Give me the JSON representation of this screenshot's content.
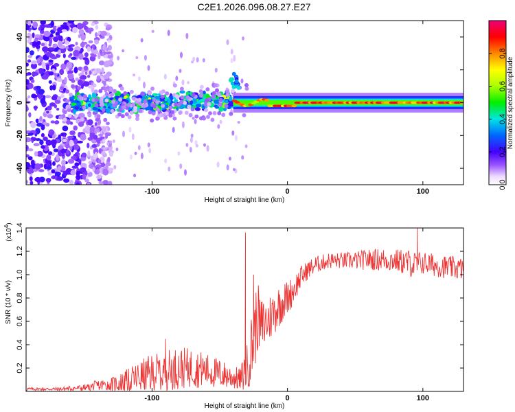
{
  "title": "C2E1.2026.096.08.27.E27",
  "chart_data": [
    {
      "type": "heatmap",
      "xlabel": "Height of straight line (km)",
      "ylabel": "Frequency (Hz)",
      "xlim": [
        -193,
        130
      ],
      "ylim": [
        -50,
        50
      ],
      "xticks": [
        -100,
        0,
        100
      ],
      "yticks": [
        -40,
        -20,
        0,
        20,
        40
      ],
      "colorbar": {
        "label": "Normalized spectral amplitude",
        "range": [
          0.0,
          1.0
        ],
        "ticks": [
          "0.0",
          "0.2",
          "0.4",
          "0.6",
          "0.8"
        ],
        "tick_values": [
          0.0,
          0.2,
          0.4,
          0.6,
          0.8
        ]
      },
      "features": [
        {
          "region": "noise",
          "x_range": [
            -193,
            -130
          ],
          "freq_range": [
            -50,
            50
          ],
          "amplitude": [
            0.1,
            0.25
          ]
        },
        {
          "region": "line-onset",
          "x_range": [
            -160,
            -40
          ],
          "center_freq": 0,
          "width_hz": 6,
          "amplitude": [
            0.2,
            0.5
          ]
        },
        {
          "region": "bump",
          "x_range": [
            -42,
            -36
          ],
          "center_freq": 15,
          "amplitude": 0.4
        },
        {
          "region": "tone",
          "x_range": [
            -40,
            130
          ],
          "center_freq": 0,
          "width_hz": 3,
          "amplitude": [
            0.6,
            1.0
          ]
        }
      ]
    },
    {
      "type": "line",
      "xlabel": "Height of straight line (km)",
      "ylabel": "SNR (10 * v/v)",
      "y_multiplier": "(x10",
      "y_multiplier_exp": "4",
      "y_multiplier_close": ")",
      "xlim": [
        -193,
        130
      ],
      "ylim": [
        0,
        1.4
      ],
      "xticks": [
        -100,
        0,
        100
      ],
      "yticks": [
        0.2,
        0.4,
        0.6,
        0.8,
        1.0,
        1.2,
        1.4
      ],
      "ytick_labels": [
        "0.2",
        "0.4",
        "0.6",
        "0.8",
        "1.0",
        "1.2",
        "1.4"
      ],
      "color": "#ee3333",
      "x": [
        -193,
        -170,
        -150,
        -140,
        -130,
        -120,
        -110,
        -100,
        -90,
        -80,
        -70,
        -60,
        -50,
        -40,
        -35,
        -30,
        -25,
        -22,
        -20,
        -15,
        -10,
        -5,
        0,
        5,
        10,
        15,
        20,
        25,
        30,
        40,
        50,
        60,
        70,
        80,
        90,
        95,
        100,
        110,
        120,
        130
      ],
      "y": [
        0.02,
        0.02,
        0.03,
        0.05,
        0.06,
        0.08,
        0.12,
        0.15,
        0.18,
        0.2,
        0.2,
        0.18,
        0.15,
        0.12,
        0.1,
        0.2,
        0.45,
        0.65,
        0.55,
        0.6,
        0.68,
        0.75,
        0.8,
        0.88,
        0.98,
        1.04,
        1.08,
        1.1,
        1.12,
        1.12,
        1.12,
        1.13,
        1.13,
        1.12,
        1.1,
        1.08,
        1.1,
        1.08,
        1.06,
        1.05
      ],
      "noise_amplitude": [
        0.015,
        0.015,
        0.03,
        0.05,
        0.06,
        0.1,
        0.14,
        0.17,
        0.18,
        0.18,
        0.17,
        0.15,
        0.13,
        0.1,
        0.1,
        0.2,
        0.35,
        0.3,
        0.25,
        0.22,
        0.2,
        0.18,
        0.15,
        0.12,
        0.1,
        0.08,
        0.08,
        0.07,
        0.07,
        0.07,
        0.08,
        0.09,
        0.1,
        0.1,
        0.12,
        0.12,
        0.1,
        0.1,
        0.1,
        0.1
      ],
      "peaks": [
        {
          "x": -31,
          "y": 1.36
        },
        {
          "x": 96,
          "y": 1.4
        },
        {
          "x": -25,
          "y": 1.0
        },
        {
          "x": -90,
          "y": 0.45
        }
      ]
    }
  ]
}
